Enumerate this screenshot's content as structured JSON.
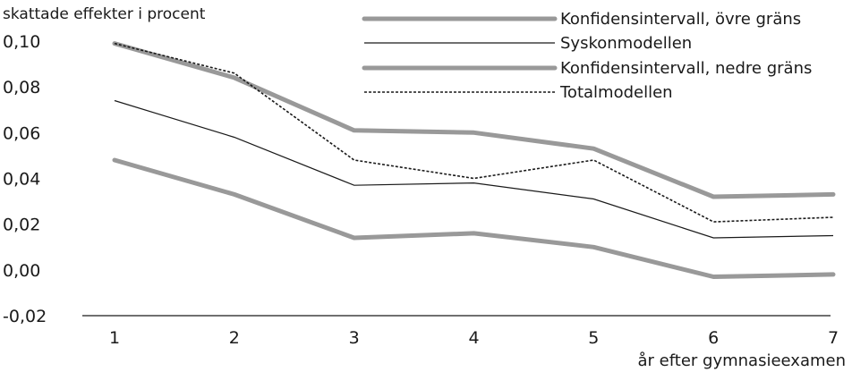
{
  "chart_data": {
    "type": "line",
    "ylabel": "skattade effekter i procent",
    "xlabel": "år efter gymnasieexamen",
    "x": [
      1,
      2,
      3,
      4,
      5,
      6,
      7
    ],
    "x_tick_labels": [
      "1",
      "2",
      "3",
      "4",
      "5",
      "6",
      "7"
    ],
    "ylim": [
      -0.02,
      0.1
    ],
    "y_tick_labels": [
      "-0,02",
      "0,00",
      "0,02",
      "0,04",
      "0,06",
      "0,08",
      "0,10"
    ],
    "y_ticks": [
      -0.02,
      0.0,
      0.02,
      0.04,
      0.06,
      0.08,
      0.1
    ],
    "grid": false,
    "legend_position": "top-right",
    "series": [
      {
        "name": "Konfidensintervall, övre gräns",
        "values": [
          0.099,
          0.084,
          0.061,
          0.06,
          0.053,
          0.032,
          0.033
        ],
        "color": "#999999",
        "style": "thick"
      },
      {
        "name": "Syskonmodellen",
        "values": [
          0.074,
          0.058,
          0.037,
          0.038,
          0.031,
          0.014,
          0.015
        ],
        "color": "#1a1a1a",
        "style": "thin"
      },
      {
        "name": "Konfidensintervall, nedre gräns",
        "values": [
          0.048,
          0.033,
          0.014,
          0.016,
          0.01,
          -0.003,
          -0.002
        ],
        "color": "#999999",
        "style": "thick"
      },
      {
        "name": "Totalmodellen",
        "values": [
          0.099,
          0.086,
          0.048,
          0.04,
          0.048,
          0.021,
          0.023
        ],
        "color": "#1a1a1a",
        "style": "dotted"
      }
    ]
  }
}
